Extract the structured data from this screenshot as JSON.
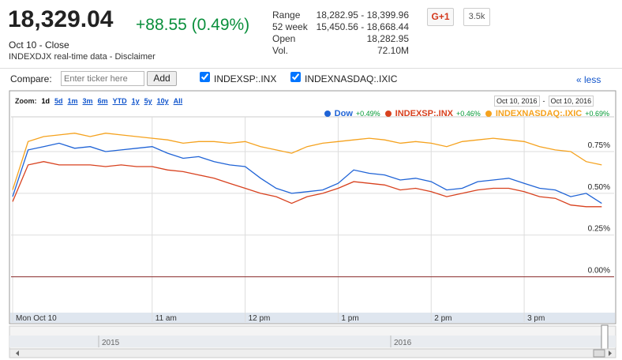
{
  "quote": {
    "price": "18,329.04",
    "change": "+88.55 (0.49%)",
    "date": "Oct 10 - Close",
    "source": "INDEXDJX real-time data - Disclaimer"
  },
  "stats": [
    {
      "label": "Range",
      "value": "18,282.95 - 18,399.96"
    },
    {
      "label": "52 week",
      "value": "15,450.56 - 18,668.44"
    },
    {
      "label": "Open",
      "value": "18,282.95"
    },
    {
      "label": "Vol.",
      "value": "72.10M"
    }
  ],
  "social": {
    "button": "G+1",
    "count": "3.5k"
  },
  "compare": {
    "label": "Compare:",
    "placeholder": "Enter ticker here",
    "button": "Add",
    "tickers": [
      "INDEXSP:.INX",
      "INDEXNASDAQ:.IXIC"
    ],
    "toggle": "« less"
  },
  "chart_data": {
    "type": "line",
    "zoom": {
      "label": "Zoom:",
      "options": [
        "1d",
        "5d",
        "1m",
        "3m",
        "6m",
        "YTD",
        "1y",
        "5y",
        "10y",
        "All"
      ]
    },
    "date_range": {
      "from": "Oct 10, 2016",
      "separator": "-",
      "to": "Oct 10, 2016"
    },
    "x": [
      570,
      580,
      590,
      600,
      610,
      620,
      630,
      640,
      650,
      660,
      670,
      680,
      690,
      700,
      710,
      720,
      730,
      740,
      750,
      760,
      770,
      780,
      790,
      800,
      810,
      820,
      830,
      840,
      850,
      860,
      870,
      880,
      890,
      900,
      910,
      920,
      930,
      940,
      950
    ],
    "xlim": [
      570,
      958
    ],
    "xticks": [
      {
        "value": 570,
        "label": "Mon Oct 10"
      },
      {
        "value": 660,
        "label": "11 am"
      },
      {
        "value": 720,
        "label": "12 pm"
      },
      {
        "value": 780,
        "label": "1 pm"
      },
      {
        "value": 840,
        "label": "2 pm"
      },
      {
        "value": 900,
        "label": "3 pm"
      }
    ],
    "ylim": [
      -0.21,
      1.1
    ],
    "yticks": [
      {
        "value": 0,
        "label": "0.00%"
      },
      {
        "value": 0.25,
        "label": "0.25%"
      },
      {
        "value": 0.5,
        "label": "0.50%"
      },
      {
        "value": 0.75,
        "label": "0.75%"
      }
    ],
    "grid": true,
    "series": [
      {
        "name": "Dow",
        "change": "+0.49%",
        "color": "#1f63d6",
        "values": [
          0.48,
          0.76,
          0.78,
          0.8,
          0.77,
          0.78,
          0.75,
          0.76,
          0.77,
          0.78,
          0.74,
          0.71,
          0.72,
          0.69,
          0.67,
          0.66,
          0.59,
          0.53,
          0.5,
          0.51,
          0.52,
          0.56,
          0.64,
          0.62,
          0.61,
          0.58,
          0.59,
          0.57,
          0.52,
          0.53,
          0.57,
          0.58,
          0.59,
          0.56,
          0.53,
          0.52,
          0.48,
          0.5,
          0.44
        ]
      },
      {
        "name": "INDEXSP:.INX",
        "change": "+0.46%",
        "color": "#d8411e",
        "values": [
          0.45,
          0.67,
          0.69,
          0.67,
          0.67,
          0.67,
          0.66,
          0.67,
          0.66,
          0.66,
          0.64,
          0.63,
          0.61,
          0.59,
          0.56,
          0.53,
          0.5,
          0.48,
          0.44,
          0.48,
          0.5,
          0.53,
          0.57,
          0.56,
          0.55,
          0.52,
          0.53,
          0.51,
          0.48,
          0.5,
          0.52,
          0.53,
          0.53,
          0.51,
          0.48,
          0.47,
          0.43,
          0.42,
          0.42
        ]
      },
      {
        "name": "INDEXNASDAQ:.IXIC",
        "change": "+0.69%",
        "color": "#f5a21e",
        "values": [
          0.52,
          0.81,
          0.84,
          0.85,
          0.86,
          0.84,
          0.86,
          0.85,
          0.84,
          0.83,
          0.82,
          0.8,
          0.81,
          0.81,
          0.8,
          0.81,
          0.78,
          0.76,
          0.74,
          0.78,
          0.8,
          0.81,
          0.82,
          0.83,
          0.82,
          0.8,
          0.81,
          0.8,
          0.78,
          0.81,
          0.82,
          0.83,
          0.82,
          0.81,
          0.78,
          0.76,
          0.75,
          0.69,
          0.67
        ]
      }
    ],
    "navigator": {
      "labels": [
        "2015",
        "2016"
      ]
    }
  }
}
